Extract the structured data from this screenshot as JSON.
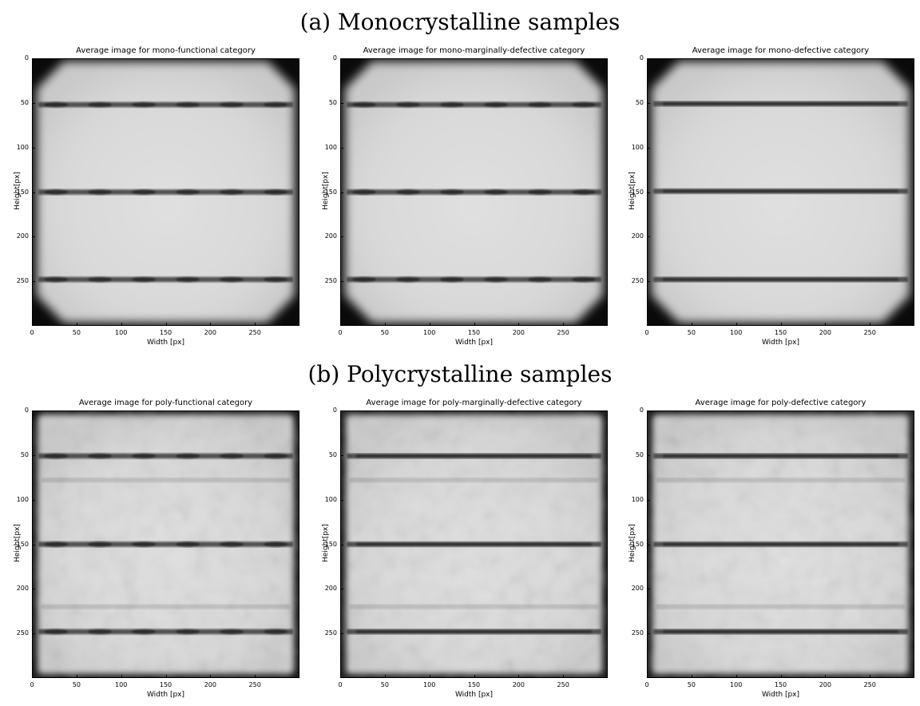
{
  "section_a_title": "(a) Monocrystalline samples",
  "section_b_title": "(b) Polycrystalline samples",
  "axis": {
    "xlabel": "Width [px]",
    "ylabel": "Height[px]",
    "xticks": [
      "0",
      "50",
      "100",
      "150",
      "200",
      "250"
    ],
    "yticks": [
      "0",
      "50",
      "100",
      "150",
      "200",
      "250"
    ],
    "xlim": [
      0,
      300
    ],
    "ylim": [
      300,
      0
    ]
  },
  "panels": [
    {
      "title": "Average image for mono-functional category",
      "kind": "mono",
      "busbars": [
        52,
        150,
        248
      ],
      "busbar_style": "segmented"
    },
    {
      "title": "Average image for mono-marginally-defective category",
      "kind": "mono",
      "busbars": [
        52,
        150,
        248
      ],
      "busbar_style": "segmented"
    },
    {
      "title": "Average image for mono-defective category",
      "kind": "mono",
      "busbars": [
        51,
        149,
        248
      ],
      "busbar_style": "solid"
    },
    {
      "title": "Average image for poly-functional category",
      "kind": "poly",
      "busbars": [
        51,
        150,
        248
      ],
      "busbar_style": "segmented"
    },
    {
      "title": "Average image for poly-marginally-defective category",
      "kind": "poly",
      "busbars": [
        51,
        150,
        248
      ],
      "busbar_style": "solid"
    },
    {
      "title": "Average image for poly-defective category",
      "kind": "poly",
      "busbars": [
        51,
        150,
        248
      ],
      "busbar_style": "solid"
    }
  ],
  "chart_data": [
    {
      "type": "heatmap",
      "title": "Average image for mono-functional category",
      "xlabel": "Width [px]",
      "ylabel": "Height[px]",
      "xlim": [
        0,
        300
      ],
      "ylim": [
        300,
        0
      ]
    },
    {
      "type": "heatmap",
      "title": "Average image for mono-marginally-defective category",
      "xlabel": "Width [px]",
      "ylabel": "Height[px]",
      "xlim": [
        0,
        300
      ],
      "ylim": [
        300,
        0
      ]
    },
    {
      "type": "heatmap",
      "title": "Average image for mono-defective category",
      "xlabel": "Width [px]",
      "ylabel": "Height[px]",
      "xlim": [
        0,
        300
      ],
      "ylim": [
        300,
        0
      ]
    },
    {
      "type": "heatmap",
      "title": "Average image for poly-functional category",
      "xlabel": "Width [px]",
      "ylabel": "Height[px]",
      "xlim": [
        0,
        300
      ],
      "ylim": [
        300,
        0
      ]
    },
    {
      "type": "heatmap",
      "title": "Average image for poly-marginally-defective category",
      "xlabel": "Width [px]",
      "ylabel": "Height[px]",
      "xlim": [
        0,
        300
      ],
      "ylim": [
        300,
        0
      ]
    },
    {
      "type": "heatmap",
      "title": "Average image for poly-defective category",
      "xlabel": "Width [px]",
      "ylabel": "Height[px]",
      "xlim": [
        0,
        300
      ],
      "ylim": [
        300,
        0
      ]
    }
  ]
}
